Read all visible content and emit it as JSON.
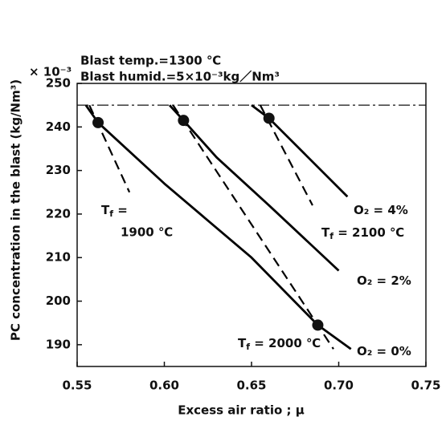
{
  "chart_data": {
    "type": "line",
    "y_label": "PC concentration in the blast (kg/Nm³)",
    "y_multiplier": "× 10⁻³",
    "x_label": "Excess air ratio ; μ",
    "conditions": [
      "Blast temp.=1300 ℃",
      "Blast humid.=5×10⁻³kg／Nm³"
    ],
    "xlim": [
      0.55,
      0.75
    ],
    "xticks": [
      {
        "value": 0.55,
        "label": "0.55"
      },
      {
        "value": 0.6,
        "label": "0.60"
      },
      {
        "value": 0.65,
        "label": "0.65"
      },
      {
        "value": 0.7,
        "label": "0.70"
      },
      {
        "value": 0.75,
        "label": "0.75"
      }
    ],
    "ylim": [
      185,
      250
    ],
    "yticks": [
      190,
      200,
      210,
      220,
      230,
      240,
      250
    ],
    "limit_line": 245,
    "series": [
      {
        "name": "O₂ = 0%",
        "color": "#000000",
        "style": "solid",
        "x": [
          0.555,
          0.562,
          0.6,
          0.65,
          0.688,
          0.707
        ],
        "values": [
          245,
          241,
          227,
          210,
          194.5,
          189
        ]
      },
      {
        "name": "O₂ = 2%",
        "color": "#000000",
        "style": "solid",
        "x": [
          0.603,
          0.611,
          0.63,
          0.66,
          0.7
        ],
        "values": [
          245,
          241.5,
          233,
          222,
          207
        ]
      },
      {
        "name": "O₂ = 4%",
        "color": "#000000",
        "style": "solid",
        "x": [
          0.65,
          0.66,
          0.68,
          0.705
        ],
        "values": [
          245,
          242,
          234,
          224
        ]
      },
      {
        "name": "T",
        "sub": "f",
        "rest": " = 1900 ℃",
        "color": "#000000",
        "style": "dashed",
        "x": [
          0.557,
          0.58
        ],
        "values": [
          245,
          225
        ]
      },
      {
        "name": "T",
        "sub": "f",
        "rest": " = 2000 ℃",
        "color": "#000000",
        "style": "dashed",
        "x": [
          0.605,
          0.697
        ],
        "values": [
          245,
          189
        ]
      },
      {
        "name": "T",
        "sub": "f",
        "rest": " = 2100 ℃",
        "color": "#000000",
        "style": "dashed",
        "x": [
          0.655,
          0.685
        ],
        "values": [
          245,
          222
        ]
      }
    ],
    "points": {
      "x": [
        0.562,
        0.611,
        0.66,
        0.688
      ],
      "values": [
        241,
        241.5,
        242,
        194.5
      ]
    }
  }
}
